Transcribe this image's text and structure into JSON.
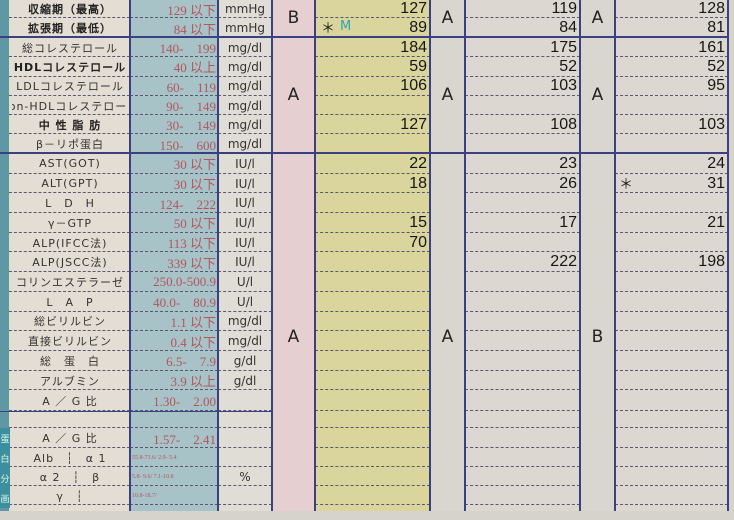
{
  "colors": {
    "line": "#3b4180",
    "reference_text": "#b4545c",
    "value1_bg": "#d9d59c",
    "grade1_bg": "#e5cfd0",
    "reference_bg": "#a8c3c8"
  },
  "section_label": [
    "蛋",
    "白",
    "分",
    "画"
  ],
  "rows": [
    {
      "label": "収縮期（最高）",
      "bold": true,
      "ref": "129 以下",
      "unit": "mmHg",
      "v1": "127",
      "v2": "119",
      "v3": "128"
    },
    {
      "label": "拡張期（最低）",
      "bold": true,
      "ref": "84 以下",
      "unit": "mmHg",
      "v1": "89",
      "v2": "84",
      "v3": "81"
    },
    {
      "label": "総コレステロール",
      "ref": "140-　199",
      "unit": "mg/dl",
      "v1": "184",
      "v2": "175",
      "v3": "161"
    },
    {
      "label": "HDLコレステロール",
      "bold": true,
      "ref": "40 以上",
      "unit": "mg/dl",
      "v1": "59",
      "v2": "52",
      "v3": "52"
    },
    {
      "label": "LDLコレステロール",
      "ref": "60-　119",
      "unit": "mg/dl",
      "v1": "106",
      "v2": "103",
      "v3": "95"
    },
    {
      "label": "non-HDLコレステロール",
      "ref": "90-　149",
      "unit": "mg/dl",
      "v1": "",
      "v2": "",
      "v3": ""
    },
    {
      "label": "中 性 脂 肪",
      "bold": true,
      "ref": "30-　149",
      "unit": "mg/dl",
      "v1": "127",
      "v2": "108",
      "v3": "103"
    },
    {
      "label": "β－リポ蛋白",
      "ref": "150-　600",
      "unit": "mg/dl",
      "v1": "",
      "v2": "",
      "v3": ""
    },
    {
      "label": "AST(GOT)",
      "ref": "30 以下",
      "unit": "IU/l",
      "v1": "22",
      "v2": "23",
      "v3": "24"
    },
    {
      "label": "ALT(GPT)",
      "ref": "30 以下",
      "unit": "IU/l",
      "v1": "18",
      "v2": "26",
      "v3": "31"
    },
    {
      "label": "L　D　H",
      "ref": "124-　222",
      "unit": "IU/l",
      "v1": "",
      "v2": "",
      "v3": ""
    },
    {
      "label": "γ－GTP",
      "ref": "50 以下",
      "unit": "IU/l",
      "v1": "15",
      "v2": "17",
      "v3": "21"
    },
    {
      "label": "ALP(IFCC法)",
      "ref": "113 以下",
      "unit": "IU/l",
      "v1": "70",
      "v2": "",
      "v3": ""
    },
    {
      "label": "ALP(JSCC法)",
      "ref": "339 以下",
      "unit": "IU/l",
      "v1": "",
      "v2": "222",
      "v3": "198"
    },
    {
      "label": "コリンエステラーゼ",
      "ref": "250.0-500.9",
      "unit": "U/l",
      "v1": "",
      "v2": "",
      "v3": ""
    },
    {
      "label": "L　A　P",
      "ref": "40.0-　80.9",
      "unit": "U/l",
      "v1": "",
      "v2": "",
      "v3": ""
    },
    {
      "label": "総ビリルビン",
      "ref": "1.1 以下",
      "unit": "mg/dl",
      "v1": "",
      "v2": "",
      "v3": ""
    },
    {
      "label": "直接ビリルビン",
      "ref": "0.4 以下",
      "unit": "mg/dl",
      "v1": "",
      "v2": "",
      "v3": ""
    },
    {
      "label": "総　蛋　白",
      "ref": "6.5-　7.9",
      "unit": "g/dl",
      "v1": "",
      "v2": "",
      "v3": ""
    },
    {
      "label": "アルブミン",
      "ref": "3.9 以上",
      "unit": "g/dl",
      "v1": "",
      "v2": "",
      "v3": ""
    },
    {
      "label": "A ／ G 比",
      "ref": "1.30-　2.00",
      "unit": "",
      "v1": "",
      "v2": "",
      "v3": ""
    },
    {
      "label": "",
      "ref": "",
      "unit": "",
      "v1": "",
      "v2": "",
      "v3": ""
    },
    {
      "label": "A ／ G 比",
      "ref": "1.57-　2.41",
      "unit": "",
      "v1": "",
      "v2": "",
      "v3": ""
    },
    {
      "label": "Alb　┆　α 1",
      "ref": "55.8-73.6/ 2.9- 5.4",
      "small": true,
      "unit": "",
      "v1": "",
      "v2": "",
      "v3": ""
    },
    {
      "label": "α 2　┆　β",
      "ref": "5.8- 9.6/ 7.1-10.8",
      "small": true,
      "unit": "%",
      "v1": "",
      "v2": "",
      "v3": ""
    },
    {
      "label": "γ　┆",
      "ref": "10.8-18.7/",
      "small": true,
      "unit": "",
      "v1": "",
      "v2": "",
      "v3": ""
    }
  ],
  "grades": {
    "blood_pressure": [
      "B",
      "A",
      "A"
    ],
    "lipids": [
      "A",
      "A",
      "A"
    ],
    "liver_protein": [
      "A",
      "A",
      "B"
    ]
  },
  "marks": {
    "v1_diastolic": "＊",
    "v1_diastolic_flag": "M",
    "v3_alt": "＊"
  }
}
